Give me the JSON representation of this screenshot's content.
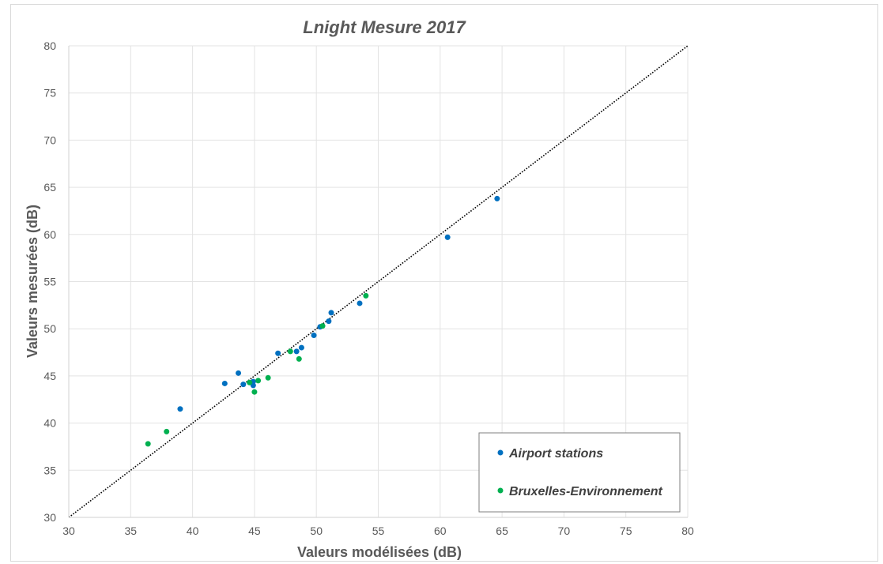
{
  "chart_data": {
    "type": "scatter",
    "title": "Lnight Mesure 2017",
    "xlabel": "Valeurs modélisées (dB)",
    "ylabel": "Valeurs mesurées (dB)",
    "xlim": [
      30,
      80
    ],
    "ylim": [
      30,
      80
    ],
    "xticks": [
      "30",
      "35",
      "40",
      "45",
      "50",
      "55",
      "60",
      "65",
      "70",
      "75",
      "80"
    ],
    "yticks": [
      "30",
      "35",
      "40",
      "45",
      "50",
      "55",
      "60",
      "65",
      "70",
      "75",
      "80"
    ],
    "grid": true,
    "legend_position": "bottom-right",
    "reference_line": {
      "x": [
        30,
        80
      ],
      "y": [
        30,
        80
      ],
      "style": "dotted",
      "color": "#000000"
    },
    "series": [
      {
        "name": "Airport stations",
        "color": "#0070c0",
        "points": [
          [
            39.0,
            41.5
          ],
          [
            42.6,
            44.2
          ],
          [
            43.7,
            45.3
          ],
          [
            44.1,
            44.1
          ],
          [
            44.9,
            44.0
          ],
          [
            44.9,
            44.4
          ],
          [
            46.9,
            47.4
          ],
          [
            48.4,
            47.6
          ],
          [
            48.8,
            48.0
          ],
          [
            49.8,
            49.3
          ],
          [
            50.3,
            50.2
          ],
          [
            51.0,
            50.8
          ],
          [
            51.2,
            51.7
          ],
          [
            53.5,
            52.7
          ],
          [
            60.6,
            59.7
          ],
          [
            64.6,
            63.8
          ]
        ]
      },
      {
        "name": "Bruxelles-Environnement",
        "color": "#00b050",
        "points": [
          [
            36.4,
            37.8
          ],
          [
            37.9,
            39.1
          ],
          [
            44.6,
            44.3
          ],
          [
            45.0,
            43.3
          ],
          [
            45.3,
            44.5
          ],
          [
            46.1,
            44.8
          ],
          [
            47.9,
            47.6
          ],
          [
            48.6,
            46.8
          ],
          [
            50.5,
            50.3
          ],
          [
            54.0,
            53.5
          ]
        ]
      }
    ]
  }
}
